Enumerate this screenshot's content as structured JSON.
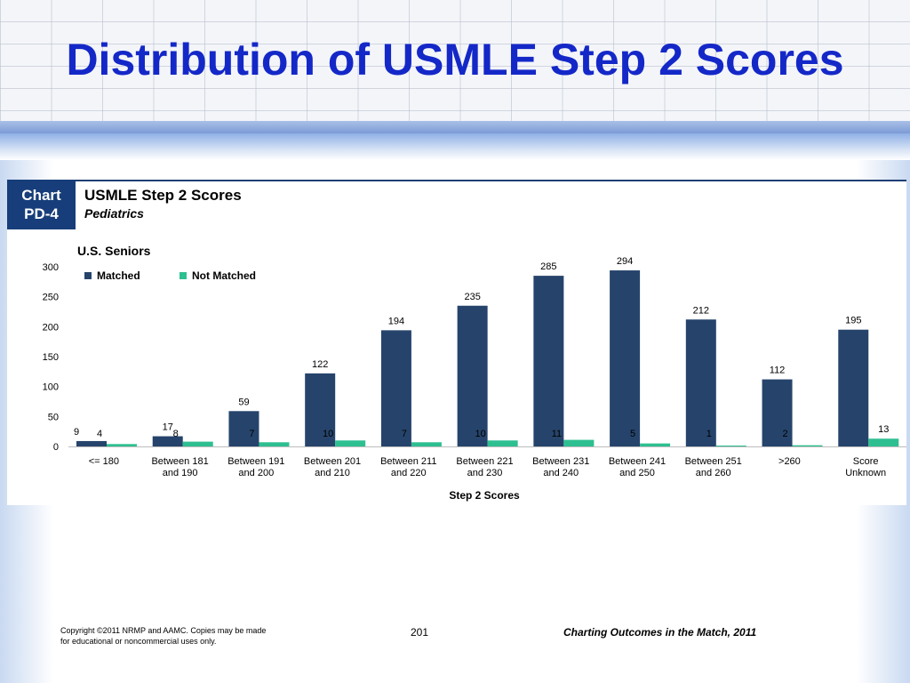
{
  "slide": {
    "title": "Distribution of USMLE Step 2 Scores",
    "badge": {
      "line1": "Chart",
      "line2": "PD-4"
    },
    "chart_title": "USMLE Step 2 Scores",
    "chart_subtitle": "Pediatrics",
    "footer": {
      "copyright_line1": "Copyright ©2011 NRMP and AAMC. Copies may be made",
      "copyright_line2": "for educational or noncommercial uses only.",
      "page_number": "201",
      "source": "Charting Outcomes in the Match, 2011"
    }
  },
  "colors": {
    "title": "#1428c8",
    "matched": "#26446b",
    "not_matched": "#2ebf91",
    "badge": "#173e7a"
  },
  "chart_data": {
    "type": "bar",
    "subtitle": "U.S. Seniors",
    "xlabel": "Step 2 Scores",
    "ylabel": "",
    "ylim": [
      0,
      300
    ],
    "yticks": [
      0,
      50,
      100,
      150,
      200,
      250,
      300
    ],
    "legend_position": "top-left",
    "categories": [
      [
        "<= 180"
      ],
      [
        "Between 181",
        "and 190"
      ],
      [
        "Between 191",
        "and 200"
      ],
      [
        "Between 201",
        "and 210"
      ],
      [
        "Between 211",
        "and 220"
      ],
      [
        "Between 221",
        "and 230"
      ],
      [
        "Between 231",
        "and 240"
      ],
      [
        "Between 241",
        "and 250"
      ],
      [
        "Between 251",
        "and 260"
      ],
      [
        ">260"
      ],
      [
        "Score",
        "Unknown"
      ]
    ],
    "series": [
      {
        "name": "Matched",
        "values": [
          9,
          17,
          59,
          122,
          194,
          235,
          285,
          294,
          212,
          112,
          195
        ]
      },
      {
        "name": "Not Matched",
        "values": [
          4,
          8,
          7,
          10,
          7,
          10,
          11,
          5,
          1,
          2,
          13
        ]
      }
    ]
  }
}
